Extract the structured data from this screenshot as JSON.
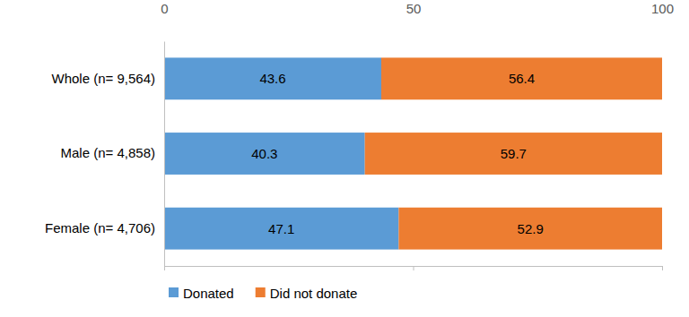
{
  "chart_data": {
    "type": "bar",
    "orientation": "horizontal",
    "stacked": true,
    "data_labels": true,
    "grid": false,
    "legend": "bottom",
    "categories": [
      "Whole (n= 9,564)",
      "Male (n= 4,858)",
      "Female (n= 4,706)"
    ],
    "series": [
      {
        "name": "Donated",
        "color": "#5b9bd5",
        "values": [
          43.6,
          40.3,
          47.1
        ]
      },
      {
        "name": "Did not donate",
        "color": "#ed7d31",
        "values": [
          56.4,
          59.7,
          52.9
        ]
      }
    ],
    "xlim": [
      0,
      100
    ],
    "xticks": [
      0,
      50,
      100
    ]
  }
}
